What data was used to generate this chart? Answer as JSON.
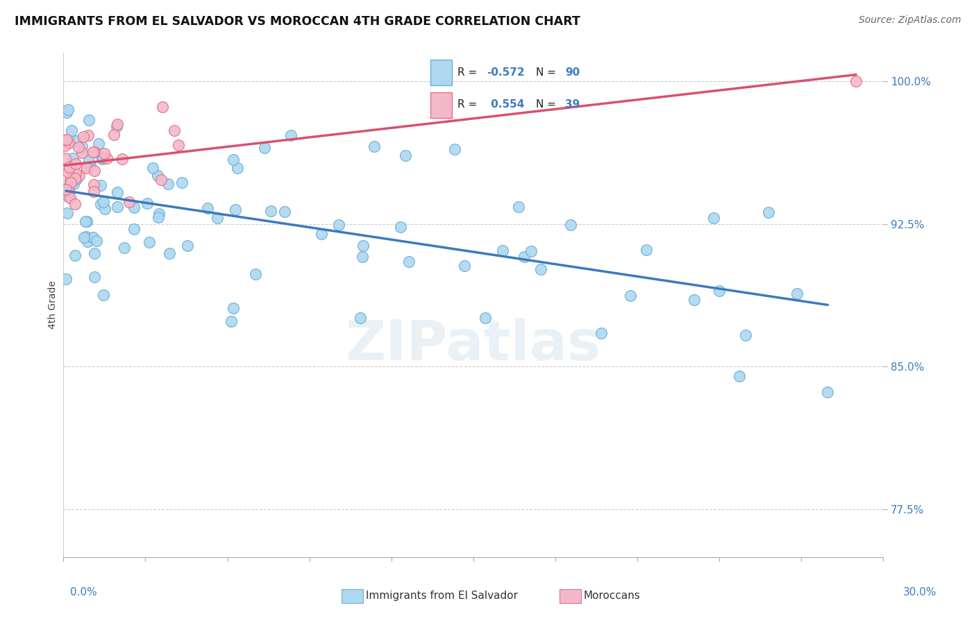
{
  "title": "IMMIGRANTS FROM EL SALVADOR VS MOROCCAN 4TH GRADE CORRELATION CHART",
  "source": "Source: ZipAtlas.com",
  "ylabel": "4th Grade",
  "xlim": [
    0.0,
    30.0
  ],
  "ylim": [
    75.0,
    101.5
  ],
  "yticks": [
    77.5,
    85.0,
    92.5,
    100.0
  ],
  "watermark": "ZIPatlas",
  "legend_labels": [
    "Immigrants from El Salvador",
    "Moroccans"
  ],
  "blue_color": "#add8f0",
  "pink_color": "#f5b8c8",
  "blue_edge_color": "#6aafd6",
  "pink_edge_color": "#e0708a",
  "blue_line_color": "#3a7bbf",
  "pink_line_color": "#d95070",
  "R_blue": -0.572,
  "N_blue": 90,
  "R_pink": 0.554,
  "N_pink": 39,
  "seed_blue": 77,
  "seed_pink": 42
}
